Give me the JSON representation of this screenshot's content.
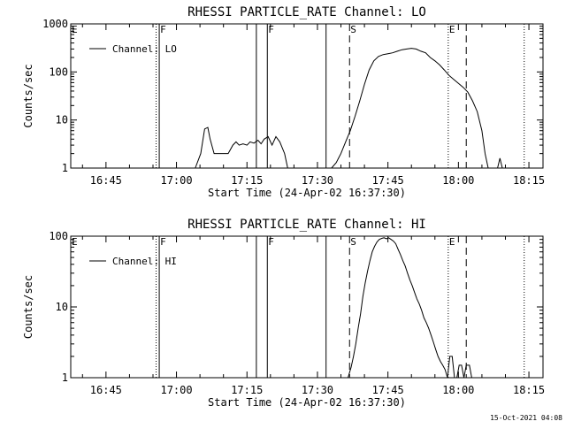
{
  "footer": {
    "timestamp": "15-Oct-2021 04:08"
  },
  "chart_data": [
    {
      "type": "line",
      "title": "RHESSI PARTICLE_RATE Channel: LO",
      "xlabel": "Start Time (24-Apr-02 16:37:30)",
      "ylabel": "Counts/sec",
      "yscale": "log",
      "xlim": [
        "16:37:30",
        "18:18:00"
      ],
      "ylim": [
        1,
        1000
      ],
      "x_ticks": [
        "16:45",
        "17:00",
        "17:15",
        "17:30",
        "17:45",
        "18:00",
        "18:15"
      ],
      "y_ticks": [
        "1",
        "10",
        "100",
        "1000"
      ],
      "legend": {
        "label": "Channel: LO",
        "position": "top-left"
      },
      "markers": [
        {
          "time": "16:37:30",
          "label": "E",
          "style": "dotted"
        },
        {
          "time": "16:55:40",
          "label": "",
          "style": "dotted"
        },
        {
          "time": "16:56:20",
          "label": "F",
          "style": "solid"
        },
        {
          "time": "17:17:00",
          "label": "",
          "style": "solid"
        },
        {
          "time": "17:19:20",
          "label": "F",
          "style": "solid"
        },
        {
          "time": "17:31:50",
          "label": "",
          "style": "solid"
        },
        {
          "time": "17:36:50",
          "label": "S",
          "style": "dashed"
        },
        {
          "time": "17:57:50",
          "label": "E",
          "style": "dotted"
        },
        {
          "time": "18:01:40",
          "label": "",
          "style": "dashed"
        },
        {
          "time": "18:14:00",
          "label": "",
          "style": "dotted"
        }
      ],
      "series": [
        {
          "values": [
            [
              "17:04:00",
              1.0
            ],
            [
              "17:05:10",
              2.0
            ],
            [
              "17:06:00",
              6.5
            ],
            [
              "17:06:40",
              7.0
            ],
            [
              "17:07:10",
              4.0
            ],
            [
              "17:08:00",
              2.0
            ],
            [
              "17:09:00",
              2.0
            ],
            [
              "17:10:00",
              2.0
            ],
            [
              "17:11:00",
              2.0
            ],
            [
              "17:12:00",
              3.0
            ],
            [
              "17:12:40",
              3.5
            ],
            [
              "17:13:20",
              3.0
            ],
            [
              "17:14:10",
              3.2
            ],
            [
              "17:15:00",
              3.0
            ],
            [
              "17:15:40",
              3.5
            ],
            [
              "17:16:30",
              3.3
            ],
            [
              "17:17:20",
              3.8
            ],
            [
              "17:18:00",
              3.2
            ],
            [
              "17:18:40",
              4.0
            ],
            [
              "17:19:30",
              4.5
            ],
            [
              "17:20:20",
              3.0
            ],
            [
              "17:21:10",
              4.5
            ],
            [
              "17:22:00",
              3.5
            ],
            [
              "17:23:00",
              2.0
            ],
            [
              "17:23:40",
              1.0
            ],
            [
              "17:33:00",
              1.0
            ],
            [
              "17:34:00",
              1.3
            ],
            [
              "17:35:00",
              2.0
            ],
            [
              "17:36:00",
              3.5
            ],
            [
              "17:37:00",
              6.0
            ],
            [
              "17:38:00",
              12
            ],
            [
              "17:39:00",
              25
            ],
            [
              "17:40:00",
              55
            ],
            [
              "17:41:00",
              110
            ],
            [
              "17:42:00",
              170
            ],
            [
              "17:43:00",
              210
            ],
            [
              "17:44:00",
              230
            ],
            [
              "17:45:00",
              240
            ],
            [
              "17:46:00",
              250
            ],
            [
              "17:47:00",
              270
            ],
            [
              "17:48:00",
              290
            ],
            [
              "17:49:00",
              300
            ],
            [
              "17:50:00",
              310
            ],
            [
              "17:51:00",
              300
            ],
            [
              "17:52:00",
              270
            ],
            [
              "17:53:00",
              250
            ],
            [
              "17:54:00",
              200
            ],
            [
              "17:55:00",
              170
            ],
            [
              "17:56:00",
              140
            ],
            [
              "17:57:00",
              110
            ],
            [
              "17:58:00",
              85
            ],
            [
              "17:59:00",
              70
            ],
            [
              "18:00:00",
              58
            ],
            [
              "18:01:00",
              48
            ],
            [
              "18:02:00",
              38
            ],
            [
              "18:03:00",
              25
            ],
            [
              "18:04:00",
              15
            ],
            [
              "18:05:00",
              6
            ],
            [
              "18:05:40",
              2
            ],
            [
              "18:06:20",
              1.0
            ],
            [
              "18:08:20",
              1.0
            ],
            [
              "18:08:50",
              1.6
            ],
            [
              "18:09:20",
              1.0
            ]
          ]
        }
      ]
    },
    {
      "type": "line",
      "title": "RHESSI PARTICLE_RATE Channel: HI",
      "xlabel": "Start Time (24-Apr-02 16:37:30)",
      "ylabel": "Counts/sec",
      "yscale": "log",
      "xlim": [
        "16:37:30",
        "18:18:00"
      ],
      "ylim": [
        1,
        100
      ],
      "x_ticks": [
        "16:45",
        "17:00",
        "17:15",
        "17:30",
        "17:45",
        "18:00",
        "18:15"
      ],
      "y_ticks": [
        "1",
        "10",
        "100"
      ],
      "legend": {
        "label": "Channel: HI",
        "position": "top-left"
      },
      "markers": [
        {
          "time": "16:37:30",
          "label": "E",
          "style": "dotted"
        },
        {
          "time": "16:55:40",
          "label": "",
          "style": "dotted"
        },
        {
          "time": "16:56:20",
          "label": "F",
          "style": "solid"
        },
        {
          "time": "17:17:00",
          "label": "",
          "style": "solid"
        },
        {
          "time": "17:19:20",
          "label": "F",
          "style": "solid"
        },
        {
          "time": "17:31:50",
          "label": "",
          "style": "solid"
        },
        {
          "time": "17:36:50",
          "label": "S",
          "style": "dashed"
        },
        {
          "time": "17:57:50",
          "label": "E",
          "style": "dotted"
        },
        {
          "time": "18:01:40",
          "label": "",
          "style": "dashed"
        },
        {
          "time": "18:14:00",
          "label": "",
          "style": "dotted"
        }
      ],
      "series": [
        {
          "values": [
            [
              "17:36:30",
              1.0
            ],
            [
              "17:37:10",
              1.4
            ],
            [
              "17:37:40",
              2.0
            ],
            [
              "17:38:10",
              3.0
            ],
            [
              "17:38:40",
              5.0
            ],
            [
              "17:39:10",
              8.0
            ],
            [
              "17:39:40",
              14
            ],
            [
              "17:40:10",
              22
            ],
            [
              "17:40:40",
              32
            ],
            [
              "17:41:10",
              45
            ],
            [
              "17:41:40",
              60
            ],
            [
              "17:42:10",
              72
            ],
            [
              "17:42:40",
              83
            ],
            [
              "17:43:10",
              90
            ],
            [
              "17:43:40",
              93
            ],
            [
              "17:44:10",
              95
            ],
            [
              "17:44:40",
              92
            ],
            [
              "17:45:10",
              95
            ],
            [
              "17:45:40",
              90
            ],
            [
              "17:46:10",
              85
            ],
            [
              "17:46:40",
              78
            ],
            [
              "17:47:10",
              65
            ],
            [
              "17:47:40",
              55
            ],
            [
              "17:48:10",
              45
            ],
            [
              "17:48:40",
              38
            ],
            [
              "17:49:10",
              30
            ],
            [
              "17:49:40",
              24
            ],
            [
              "17:50:10",
              20
            ],
            [
              "17:50:40",
              16
            ],
            [
              "17:51:10",
              13
            ],
            [
              "17:51:40",
              11
            ],
            [
              "17:52:10",
              9
            ],
            [
              "17:52:40",
              7
            ],
            [
              "17:53:10",
              6
            ],
            [
              "17:53:40",
              5
            ],
            [
              "17:54:10",
              4
            ],
            [
              "17:54:40",
              3.2
            ],
            [
              "17:55:10",
              2.5
            ],
            [
              "17:55:40",
              2.0
            ],
            [
              "17:56:10",
              1.7
            ],
            [
              "17:56:40",
              1.5
            ],
            [
              "17:57:10",
              1.3
            ],
            [
              "17:57:40",
              1.0
            ],
            [
              "17:58:10",
              2.0
            ],
            [
              "17:58:40",
              2.0
            ],
            [
              "17:59:10",
              1.0
            ],
            [
              "17:59:40",
              1.0
            ],
            [
              "18:00:10",
              1.5
            ],
            [
              "18:00:40",
              1.5
            ],
            [
              "18:01:10",
              1.0
            ],
            [
              "18:01:40",
              1.5
            ],
            [
              "18:02:20",
              1.5
            ],
            [
              "18:02:50",
              1.0
            ]
          ]
        }
      ]
    }
  ]
}
